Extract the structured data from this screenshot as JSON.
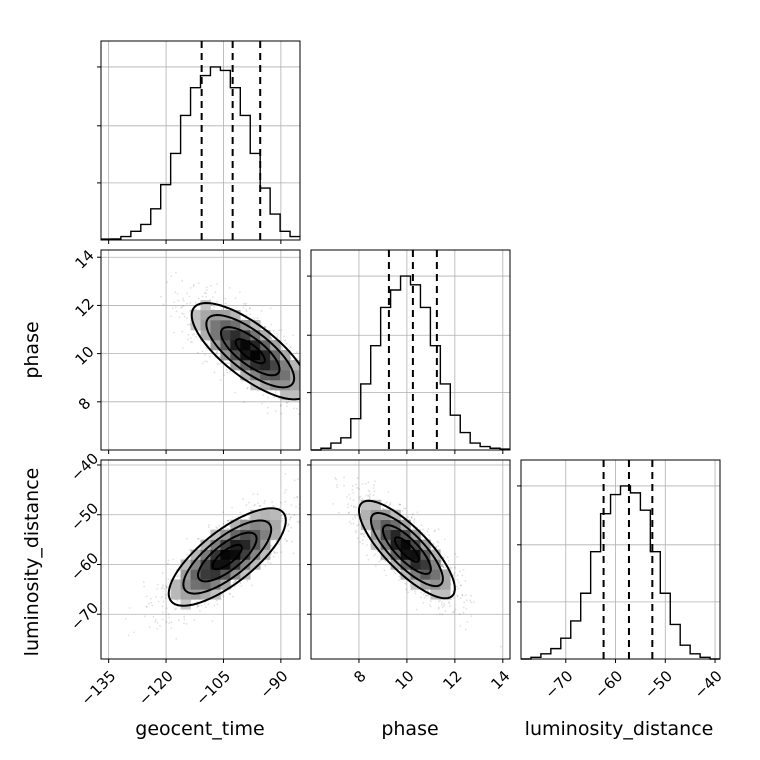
{
  "chart_data": {
    "type": "corner",
    "parameters": [
      {
        "name": "geocent_time",
        "label": "geocent_time",
        "range": [
          -137,
          -85
        ],
        "ticks": [
          -135,
          -120,
          -105,
          -90
        ],
        "tick_labels": [
          "−135",
          "−120",
          "−105",
          "−90"
        ],
        "quantiles": [
          -110.7,
          -102.6,
          -95.4
        ],
        "hist_bins": [
          -137,
          -134.4,
          -131.8,
          -129.2,
          -126.6,
          -124,
          -121.4,
          -118.8,
          -116.2,
          -113.6,
          -111,
          -108.4,
          -105.8,
          -103.2,
          -100.6,
          -98,
          -95.4,
          -92.8,
          -90.2,
          -87.6,
          -85
        ],
        "hist_counts": [
          0.005,
          0.006,
          0.02,
          0.05,
          0.09,
          0.18,
          0.32,
          0.5,
          0.72,
          0.88,
          0.95,
          1.0,
          0.98,
          0.88,
          0.72,
          0.5,
          0.3,
          0.15,
          0.05,
          0.02
        ]
      },
      {
        "name": "phase",
        "label": "phase",
        "range": [
          6.0,
          14.3
        ],
        "ticks": [
          8,
          10,
          12,
          14
        ],
        "tick_labels": [
          "8",
          "10",
          "12",
          "14"
        ],
        "quantiles": [
          9.25,
          10.25,
          11.25
        ],
        "hist_bins": [
          6.0,
          6.415,
          6.83,
          7.245,
          7.66,
          8.075,
          8.49,
          8.905,
          9.32,
          9.735,
          10.15,
          10.565,
          10.98,
          11.395,
          11.81,
          12.225,
          12.64,
          13.055,
          13.47,
          13.885,
          14.3
        ],
        "hist_counts": [
          0.0,
          0.01,
          0.04,
          0.07,
          0.18,
          0.38,
          0.6,
          0.82,
          0.92,
          1.0,
          0.95,
          0.82,
          0.6,
          0.38,
          0.2,
          0.1,
          0.04,
          0.02,
          0.01,
          0.005
        ]
      },
      {
        "name": "luminosity_distance",
        "label": "luminosity_distance",
        "range": [
          -79,
          -39
        ],
        "ticks": [
          -70,
          -60,
          -50,
          -40
        ],
        "tick_labels": [
          "−70",
          "−60",
          "−50",
          "−40"
        ],
        "quantiles": [
          -62.4,
          -57.3,
          -52.6
        ],
        "hist_bins": [
          -79,
          -77,
          -75,
          -73,
          -71,
          -69,
          -67,
          -65,
          -63,
          -61,
          -59,
          -57,
          -55,
          -53,
          -51,
          -49,
          -47,
          -45,
          -43,
          -41,
          -39
        ],
        "hist_counts": [
          0.0,
          0.01,
          0.03,
          0.06,
          0.12,
          0.22,
          0.38,
          0.62,
          0.84,
          0.95,
          1.0,
          0.96,
          0.86,
          0.62,
          0.38,
          0.2,
          0.08,
          0.03,
          0.01,
          0.0
        ]
      }
    ],
    "pairs": [
      {
        "x": "geocent_time",
        "y": "phase",
        "correlation": -0.75,
        "peak": [
          -98.0,
          10.1
        ]
      },
      {
        "x": "geocent_time",
        "y": "luminosity_distance",
        "correlation": 0.75,
        "peak": [
          -104.0,
          -58.5
        ]
      },
      {
        "x": "phase",
        "y": "luminosity_distance",
        "correlation": -0.8,
        "peak": [
          10.0,
          -57.0
        ]
      }
    ],
    "hist_ylim": [
      0,
      1.15
    ],
    "hist_ytick_levels": [
      0.33,
      0.66,
      1.0
    ],
    "contour_levels_sigma": [
      0.5,
      1.0,
      1.5,
      2.0
    ],
    "grid": true
  },
  "labels": {
    "x0": "geocent_time",
    "x1": "phase",
    "x2": "luminosity_distance",
    "y1": "phase",
    "y2": "luminosity_distance"
  }
}
